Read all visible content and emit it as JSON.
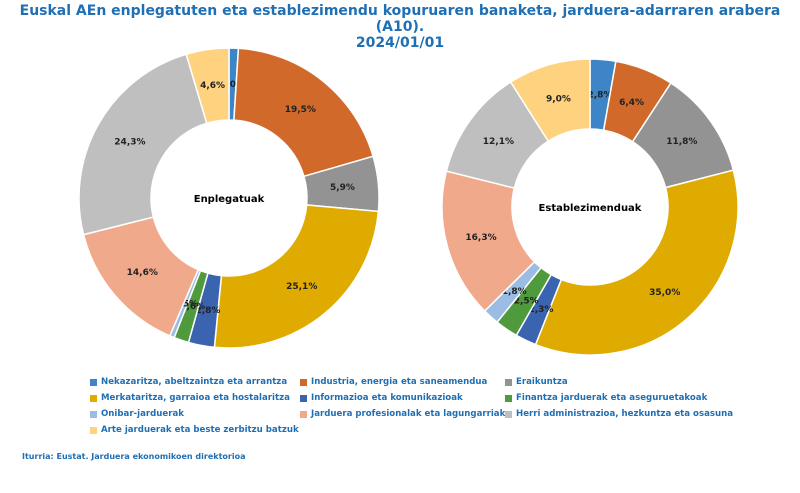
{
  "chart_data": [
    {
      "type": "donut",
      "title": "Euskal AEn enplegatuten eta establezimendu kopuruaren banaketa, jarduera-adarraren arabera (A10). 2024/01/01",
      "center_label": "Enplegatuak",
      "categories": [
        "Nekazaritza, abeltzaintza eta arrantza",
        "Industria, energia eta saneamendua",
        "Eraikuntza",
        "Merkataritza, garraioa eta hostalaritza",
        "Informazioa eta komunikazioak",
        "Finantza jarduerak eta aseguruetakoak",
        "Onibar-jarduerak",
        "Jarduera profesionalak eta lagungarriak",
        "Herri administrazioa, hezkuntza eta osasuna",
        "Arte jarduerak eta beste zerbitzu batzuk"
      ],
      "values": [
        1.0,
        19.5,
        5.9,
        25.1,
        2.8,
        1.6,
        0.5,
        14.6,
        24.3,
        4.6
      ],
      "labels": [
        "1,0%",
        "19,5%",
        "5,9%",
        "25,1%",
        "2,8%",
        "1,6%",
        "0,5%",
        "14,6%",
        "24,3%",
        "4,6%"
      ]
    },
    {
      "type": "donut",
      "center_label": "Establezimenduak",
      "categories": [
        "Nekazaritza, abeltzaintza eta arrantza",
        "Industria, energia eta saneamendua",
        "Eraikuntza",
        "Merkataritza, garraioa eta hostalaritza",
        "Informazioa eta komunikazioak",
        "Finantza jarduerak eta aseguruetakoak",
        "Onibar-jarduerak",
        "Jarduera profesionalak eta lagungarriak",
        "Herri administrazioa, hezkuntza eta osasuna",
        "Arte jarduerak eta beste zerbitzu batzuk"
      ],
      "values": [
        2.8,
        6.4,
        11.8,
        35.0,
        2.3,
        2.5,
        1.8,
        16.3,
        12.1,
        9.0
      ],
      "labels": [
        "2,8%",
        "6,4%",
        "11,8%",
        "35,0%",
        "2,3%",
        "2,5%",
        "1,8%",
        "16,3%",
        "12,1%",
        "9,0%"
      ]
    }
  ],
  "title_line1": "Euskal AEn enplegatuten eta establezimendu kopuruaren banaketa, jarduera-adarraren arabera (A10).",
  "title_line2": "2024/01/01",
  "colors": [
    "#3d85c6",
    "#d0692a",
    "#939393",
    "#e0ab00",
    "#3a63b0",
    "#4f9a3c",
    "#9cbde3",
    "#f1a98c",
    "#bfbfbf",
    "#ffd27f"
  ],
  "legend": [
    "Nekazaritza, abeltzaintza eta arrantza",
    "Industria, energia eta saneamendua",
    "Eraikuntza",
    "Merkataritza, garraioa eta hostalaritza",
    "Informazioa eta komunikazioak",
    "Finantza jarduerak eta aseguruetakoak",
    "Onibar-jarduerak",
    "Jarduera profesionalak eta lagungarriak",
    "Herri administrazioa, hezkuntza eta osasuna",
    "Arte jarduerak eta beste zerbitzu batzuk"
  ],
  "source": "Iturria: Eustat. Jarduera ekonomikoen direktorioa"
}
